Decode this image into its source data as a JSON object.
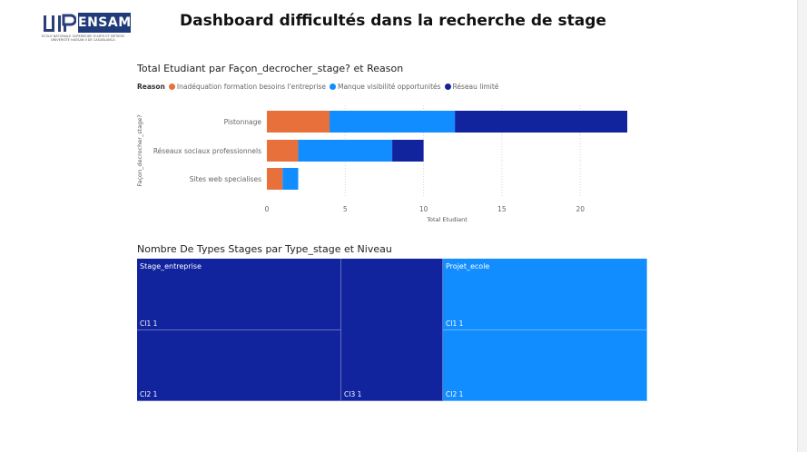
{
  "header": {
    "title": "Dashboard difficultés dans la recherche de stage",
    "logo_text": "ENSAM",
    "logo_tagline_1": "ÉCOLE NATIONALE SUPÉRIEURE D'ARTS ET MÉTIERS",
    "logo_tagline_2": "UNIVERSITÉ HASSAN II DE CASABLANCA"
  },
  "colors": {
    "orange": "#e8703a",
    "light_blue": "#118dff",
    "dark_blue": "#12239e"
  },
  "chart_data": [
    {
      "type": "bar",
      "orientation": "horizontal",
      "stacked": true,
      "title": "Total Etudiant par Façon_decrocher_stage? et Reason",
      "legend_title": "Reason",
      "legend_position": "top-left",
      "categories": [
        "Pistonnage",
        "Réseaux sociaux professionnels",
        "Sites web specialises"
      ],
      "series": [
        {
          "name": "Inadéquation formation besoins l'entreprise",
          "color": "#e8703a",
          "values": [
            4,
            2,
            1
          ]
        },
        {
          "name": "Manque visibilité opportunités",
          "color": "#118dff",
          "values": [
            8,
            6,
            1
          ]
        },
        {
          "name": "Réseau limité",
          "color": "#12239e",
          "values": [
            11,
            2,
            0
          ]
        }
      ],
      "xlabel": "Total Etudiant",
      "ylabel": "Façon_decrocher_stage?",
      "xlim": [
        0,
        23
      ],
      "xticks": [
        0,
        5,
        10,
        15,
        20
      ],
      "grid": true
    },
    {
      "type": "treemap",
      "title": "Nombre De Types Stages par Type_stage et Niveau",
      "groups": [
        {
          "name": "Stage_entreprise",
          "color": "#12239e",
          "children": [
            {
              "label": "CI1 1",
              "value": 1
            },
            {
              "label": "CI2 1",
              "value": 1
            },
            {
              "label": "CI3 1",
              "value": 1
            }
          ]
        },
        {
          "name": "Projet_ecole",
          "color": "#118dff",
          "children": [
            {
              "label": "CI1 1",
              "value": 1
            },
            {
              "label": "CI2 1",
              "value": 1
            }
          ]
        }
      ]
    }
  ]
}
